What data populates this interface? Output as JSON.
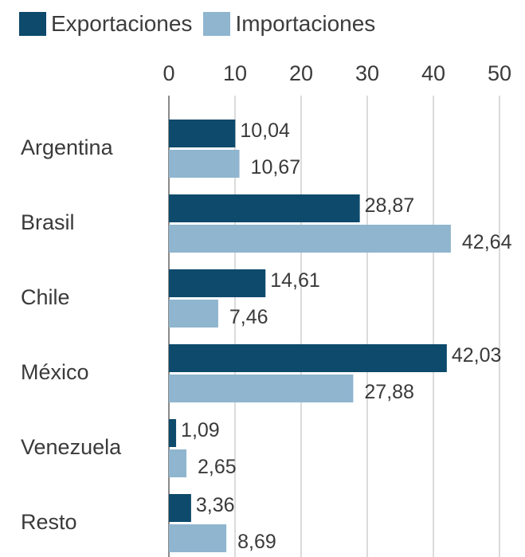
{
  "chart_data": {
    "type": "bar",
    "orientation": "horizontal",
    "categories": [
      "Argentina",
      "Brasil",
      "Chile",
      "México",
      "Venezuela",
      "Resto"
    ],
    "series": [
      {
        "name": "Exportaciones",
        "color": "#0d4a6b",
        "values": [
          10.04,
          28.87,
          14.61,
          42.03,
          1.09,
          3.36
        ],
        "labels": [
          "10,04",
          "28,87",
          "14,61",
          "42,03",
          "1,09",
          "3,36"
        ]
      },
      {
        "name": "Importaciones",
        "color": "#8fb5cf",
        "values": [
          10.67,
          42.64,
          7.46,
          27.88,
          2.65,
          8.69
        ],
        "labels": [
          "10,67",
          "42,64",
          "7,46",
          "27,88",
          "2,65",
          "8,69"
        ]
      }
    ],
    "x_ticks": [
      "0",
      "10",
      "20",
      "30",
      "40",
      "50"
    ],
    "xlim": [
      0,
      50
    ],
    "grid": true,
    "legend": "top-left"
  }
}
